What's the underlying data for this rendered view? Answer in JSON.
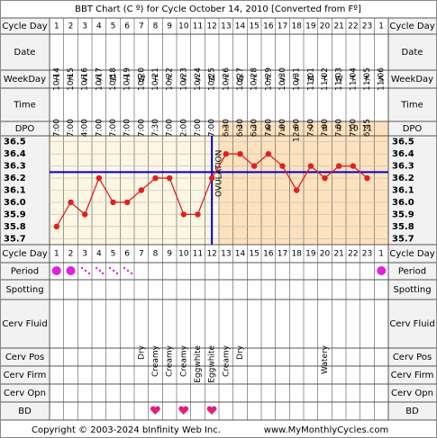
{
  "title": "BBT Chart (C º) for Cycle October 14, 2010  [Converted from Fº]",
  "row_labels": [
    "Cycle Day",
    "Date",
    "WeekDay",
    "Time",
    "DPO",
    "Cycle Day",
    "Period",
    "Spotting",
    "Cerv Fluid",
    "Cerv Pos",
    "Cerv Firm",
    "Cerv Opn",
    "BD"
  ],
  "cycle_days": [
    1,
    2,
    3,
    4,
    5,
    6,
    7,
    8,
    9,
    10,
    11,
    12,
    13,
    14,
    15,
    16,
    17,
    18,
    19,
    20,
    21,
    22,
    23,
    1
  ],
  "dates": [
    "10/14",
    "10/15",
    "10/16",
    "10/17",
    "10/18",
    "10/19",
    "10/20",
    "10/21",
    "10/22",
    "10/23",
    "10/24",
    "10/25",
    "10/26",
    "10/27",
    "10/28",
    "10/29",
    "10/30",
    "10/31",
    "11/01",
    "11/02",
    "11/03",
    "11/04",
    "11/05",
    "11/06"
  ],
  "weekdays": [
    "T",
    "F",
    "S",
    "S",
    "M",
    "T",
    "W",
    "T",
    "F",
    "S",
    "S",
    "M",
    "T",
    "W",
    "T",
    "F",
    "S",
    "S",
    "M",
    "T",
    "W",
    "T",
    "F",
    "S"
  ],
  "times": [
    "7:00",
    "7:00",
    "4:00",
    "7:00",
    "7:00",
    "7:00",
    "7:00",
    "7:30",
    "7:00",
    "2:00",
    "7:00",
    "7:00",
    "6:30",
    "6:30",
    "6:30",
    "7:00",
    "7:00",
    "12:00",
    "7:00",
    "7:00",
    "7:00",
    "7:00",
    "6:45",
    null
  ],
  "dpo": [
    null,
    null,
    null,
    null,
    null,
    null,
    null,
    null,
    null,
    null,
    null,
    null,
    1,
    2,
    3,
    4,
    5,
    6,
    7,
    8,
    9,
    10,
    11,
    null
  ],
  "cerv_fluid": [
    null,
    null,
    null,
    null,
    null,
    null,
    "Dry",
    "Creamy",
    "Creamy",
    "Creamy",
    "Eggwhite",
    "Eggwhite",
    "Creamy",
    "Dry",
    null,
    null,
    null,
    null,
    null,
    "Watery",
    null,
    null,
    null,
    null
  ],
  "chart_data": {
    "type": "line",
    "color": "#e02020",
    "values": [
      35.8,
      36.0,
      35.9,
      36.2,
      36.0,
      36.0,
      36.1,
      36.2,
      36.2,
      35.9,
      35.9,
      36.2,
      36.4,
      36.4,
      36.3,
      36.4,
      36.3,
      36.1,
      36.3,
      36.2,
      36.3,
      36.3,
      36.2,
      null
    ],
    "ylim": [
      35.65,
      36.55
    ],
    "yticks": [
      36.5,
      36.4,
      36.3,
      36.2,
      36.1,
      {
        "value": 36,
        "label": "36.0"
      },
      35.9,
      35.8,
      35.7
    ],
    "coverline": 36.25,
    "ovulation_label": "OVULATION"
  },
  "footer": {
    "copyright": "Copyright © 2003-2024 bInfinity Web Inc.",
    "site": "www.MyMonthlyCycles.com"
  }
}
